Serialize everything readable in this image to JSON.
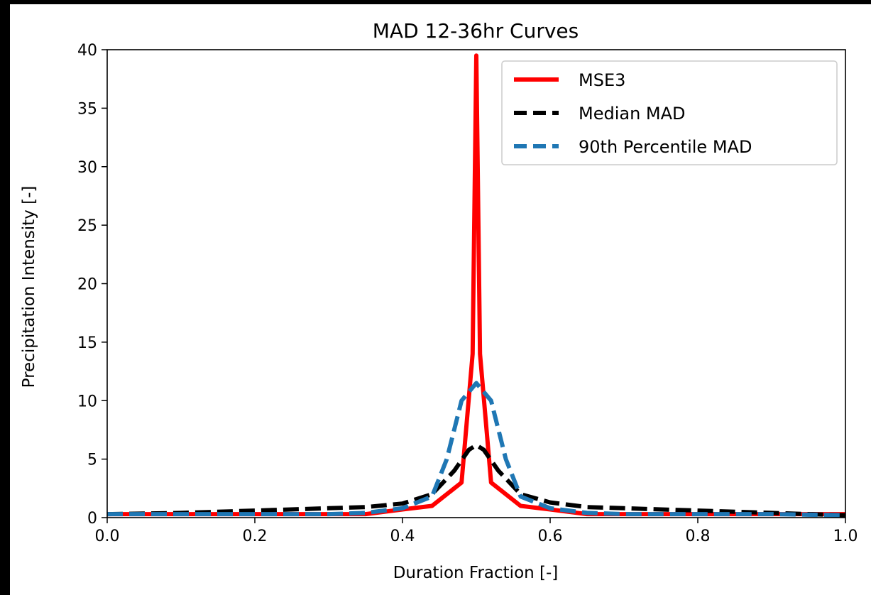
{
  "chart_data": {
    "type": "line",
    "title": "MAD 12-36hr Curves",
    "xlabel": "Duration Fraction [-]",
    "ylabel": "Precipitation Intensity [-]",
    "xlim": [
      0.0,
      1.0
    ],
    "ylim": [
      0,
      40
    ],
    "xticks": [
      "0.0",
      "0.2",
      "0.4",
      "0.6",
      "0.8",
      "1.0"
    ],
    "yticks": [
      "0",
      "5",
      "10",
      "15",
      "20",
      "25",
      "30",
      "35",
      "40"
    ],
    "legend_position": "top-right",
    "grid": false,
    "series": [
      {
        "name": "MSE3",
        "color": "#ff0000",
        "style": "solid",
        "x": [
          0.0,
          0.1,
          0.2,
          0.3,
          0.35,
          0.4,
          0.44,
          0.48,
          0.495,
          0.5,
          0.505,
          0.52,
          0.56,
          0.6,
          0.65,
          0.7,
          0.8,
          0.9,
          1.0
        ],
        "y": [
          0.3,
          0.3,
          0.3,
          0.3,
          0.3,
          0.7,
          1.0,
          3.0,
          14.0,
          39.5,
          14.0,
          3.0,
          1.0,
          0.7,
          0.3,
          0.3,
          0.3,
          0.3,
          0.3
        ]
      },
      {
        "name": "Median MAD",
        "color": "#000000",
        "style": "dashed",
        "x": [
          0.0,
          0.1,
          0.2,
          0.3,
          0.35,
          0.4,
          0.44,
          0.47,
          0.49,
          0.5,
          0.51,
          0.53,
          0.56,
          0.6,
          0.65,
          0.7,
          0.8,
          0.9,
          1.0
        ],
        "y": [
          0.3,
          0.4,
          0.6,
          0.8,
          0.9,
          1.2,
          2.0,
          4.0,
          5.8,
          6.2,
          5.8,
          4.0,
          2.0,
          1.3,
          0.9,
          0.8,
          0.6,
          0.4,
          0.2
        ]
      },
      {
        "name": "90th Percentile MAD",
        "color": "#1f77b4",
        "style": "dashed",
        "x": [
          0.0,
          0.1,
          0.2,
          0.3,
          0.35,
          0.4,
          0.44,
          0.46,
          0.48,
          0.5,
          0.52,
          0.54,
          0.56,
          0.6,
          0.65,
          0.7,
          0.8,
          0.9,
          1.0
        ],
        "y": [
          0.3,
          0.3,
          0.3,
          0.3,
          0.4,
          0.8,
          1.8,
          5.0,
          10.0,
          11.5,
          10.0,
          5.0,
          1.8,
          0.8,
          0.4,
          0.3,
          0.3,
          0.3,
          0.2
        ]
      }
    ]
  }
}
